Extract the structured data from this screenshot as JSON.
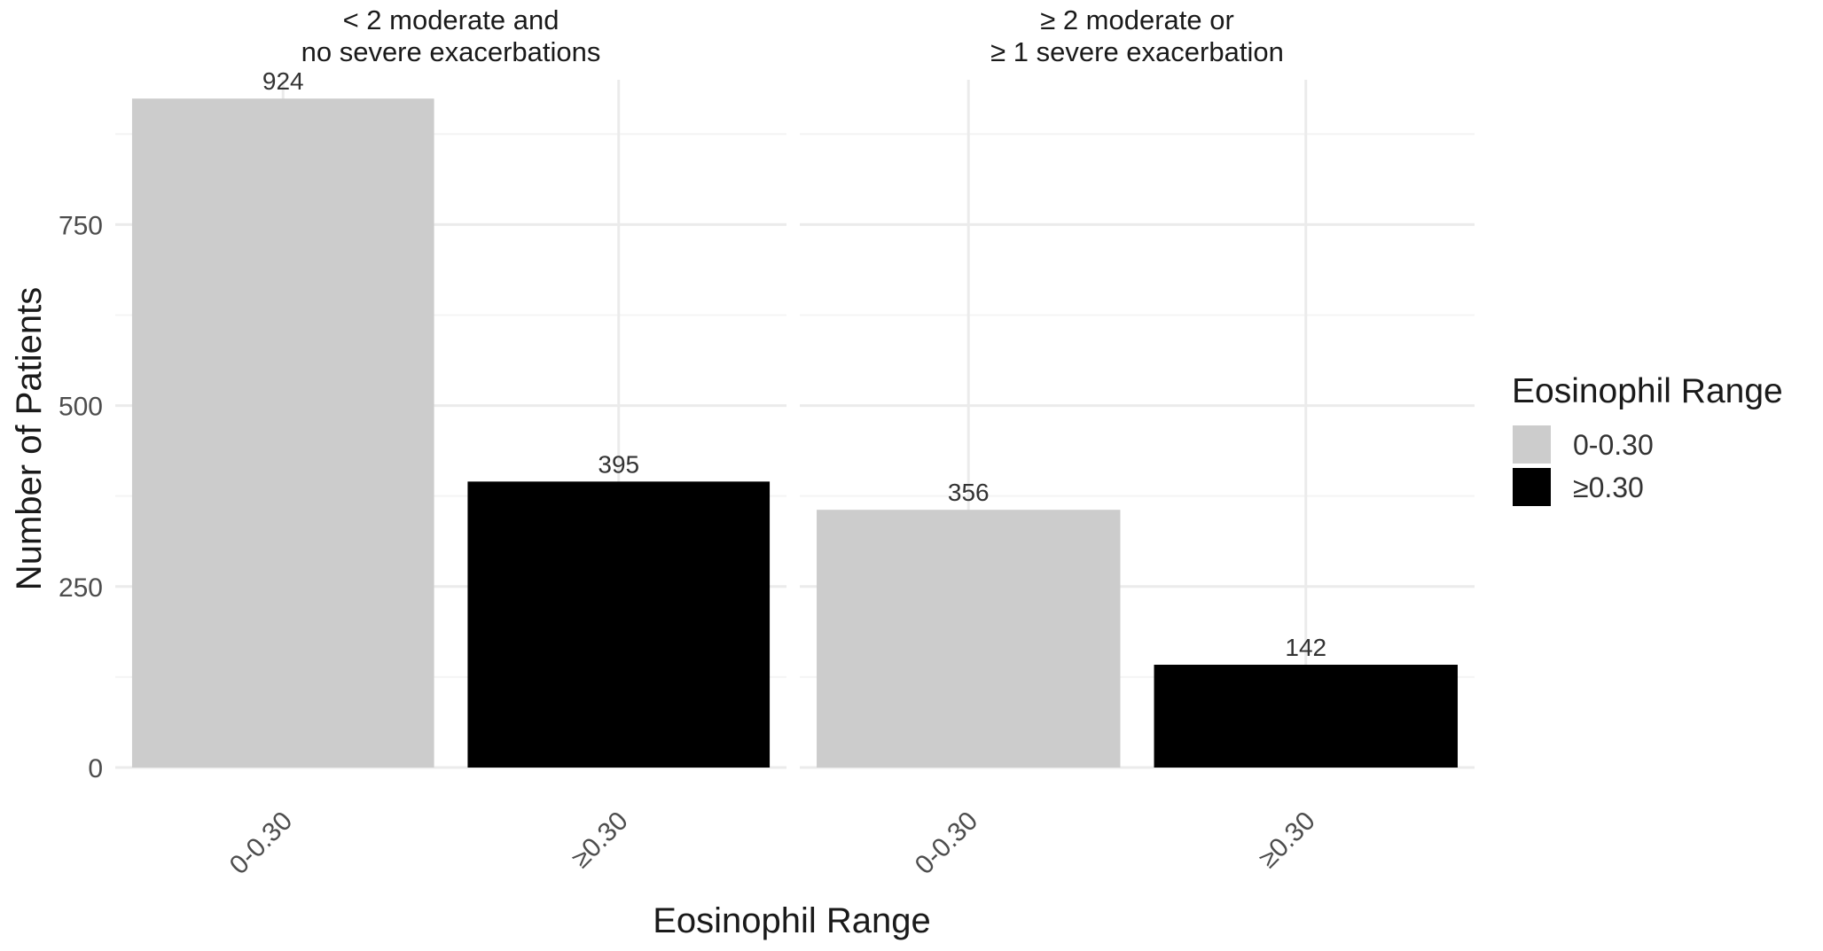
{
  "chart_data": {
    "type": "bar",
    "xlabel": "Eosinophil Range",
    "ylabel": "Number of Patients",
    "ylim": [
      0,
      950
    ],
    "yticks": [
      0,
      250,
      500,
      750
    ],
    "grid": true,
    "legend": {
      "title": "Eosinophil Range",
      "placement": "right",
      "entries": [
        {
          "label": "0-0.30",
          "color": "#cccccc"
        },
        {
          "label": "≥0.30",
          "color": "#000000"
        }
      ]
    },
    "panels": [
      {
        "title_line1": "< 2 moderate and",
        "title_line2": "no severe exacerbations",
        "categories": [
          "0-0.30",
          "≥0.30"
        ],
        "values": [
          924,
          395
        ],
        "colors": [
          "#cccccc",
          "#000000"
        ]
      },
      {
        "title_line1": "≥ 2 moderate or",
        "title_line2": "≥ 1 severe exacerbation",
        "categories": [
          "0-0.30",
          "≥0.30"
        ],
        "values": [
          356,
          142
        ],
        "colors": [
          "#cccccc",
          "#000000"
        ]
      }
    ]
  }
}
